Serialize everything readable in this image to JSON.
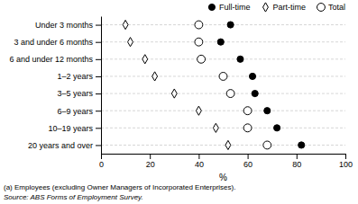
{
  "chart_data": {
    "type": "dot",
    "orientation": "horizontal",
    "categories": [
      "Under 3 months",
      "3 and under 6 months",
      "6 and under 12 months",
      "1–2 years",
      "3–5 years",
      "6–9 years",
      "10–19 years",
      "20 years and over"
    ],
    "series": [
      {
        "name": "Full-time",
        "color": "#000000",
        "marker": "circle",
        "values": [
          53,
          49,
          57,
          62,
          63,
          68,
          72,
          82
        ]
      },
      {
        "name": "Part-time",
        "color": "#000000",
        "marker": "diamond-open",
        "values": [
          10,
          12,
          18,
          22,
          30,
          40,
          47,
          52
        ]
      },
      {
        "name": "Total",
        "color": "#000000",
        "marker": "circle-open",
        "values": [
          40,
          40,
          41,
          50,
          53,
          60,
          60,
          68
        ]
      }
    ],
    "xlabel": "%",
    "xlim": [
      0,
      100
    ],
    "xticks": [
      0,
      20,
      40,
      60,
      80,
      100
    ],
    "grid": true,
    "legend": "upper-right",
    "annotations": [
      "(a) Employees (excluding Owner Managers of Incorporated Enterprises).",
      "Source: ABS Forms of Employment Survey."
    ]
  }
}
